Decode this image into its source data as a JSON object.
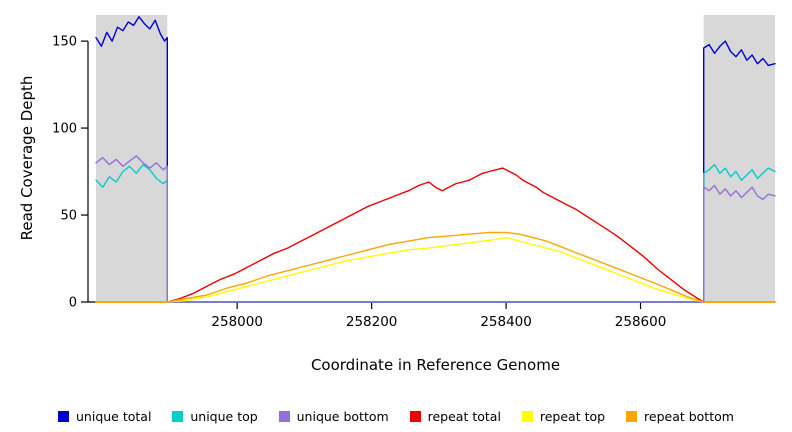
{
  "figure": {
    "background": "#FFFFFF",
    "axis_color": "#000000",
    "text_color": "#000000"
  },
  "chart_data": {
    "type": "line",
    "title": "",
    "xlabel": "Coordinate in Reference Genome",
    "ylabel": "Read Coverage Depth",
    "xlim": [
      257790,
      258800
    ],
    "ylim": [
      0,
      165
    ],
    "xticks": [
      258000,
      258200,
      258400,
      258600
    ],
    "yticks": [
      0,
      50,
      100,
      150
    ],
    "grid": false,
    "legend_position": "bottom",
    "shading_color": "#D8D8D8",
    "shaded_regions": [
      {
        "x0": 257790,
        "x1": 257896
      },
      {
        "x0": 258694,
        "x1": 258800
      }
    ],
    "series": [
      {
        "name": "unique total",
        "color": "#0000CD",
        "points": [
          [
            257790,
            152
          ],
          [
            257798,
            147
          ],
          [
            257806,
            155
          ],
          [
            257814,
            150
          ],
          [
            257822,
            158
          ],
          [
            257830,
            156
          ],
          [
            257838,
            161
          ],
          [
            257846,
            159
          ],
          [
            257854,
            164
          ],
          [
            257862,
            160
          ],
          [
            257870,
            157
          ],
          [
            257878,
            162
          ],
          [
            257886,
            154
          ],
          [
            257892,
            150
          ],
          [
            257896,
            152
          ],
          [
            257896,
            0
          ],
          [
            258694,
            0
          ],
          [
            258694,
            146
          ],
          [
            258702,
            148
          ],
          [
            258710,
            143
          ],
          [
            258718,
            147
          ],
          [
            258726,
            150
          ],
          [
            258734,
            144
          ],
          [
            258742,
            141
          ],
          [
            258750,
            145
          ],
          [
            258758,
            139
          ],
          [
            258766,
            142
          ],
          [
            258774,
            137
          ],
          [
            258782,
            140
          ],
          [
            258790,
            136
          ],
          [
            258800,
            137
          ]
        ]
      },
      {
        "name": "unique top",
        "color": "#00CDCD",
        "points": [
          [
            257790,
            70
          ],
          [
            257800,
            66
          ],
          [
            257810,
            72
          ],
          [
            257820,
            69
          ],
          [
            257830,
            75
          ],
          [
            257840,
            78
          ],
          [
            257850,
            74
          ],
          [
            257860,
            79
          ],
          [
            257870,
            76
          ],
          [
            257880,
            71
          ],
          [
            257890,
            68
          ],
          [
            257896,
            70
          ],
          [
            257896,
            0
          ],
          [
            258694,
            0
          ],
          [
            258694,
            74
          ],
          [
            258702,
            76
          ],
          [
            258710,
            79
          ],
          [
            258718,
            74
          ],
          [
            258726,
            77
          ],
          [
            258734,
            72
          ],
          [
            258742,
            75
          ],
          [
            258750,
            70
          ],
          [
            258758,
            73
          ],
          [
            258766,
            76
          ],
          [
            258774,
            71
          ],
          [
            258782,
            74
          ],
          [
            258790,
            77
          ],
          [
            258800,
            75
          ]
        ]
      },
      {
        "name": "unique bottom",
        "color": "#9370DB",
        "points": [
          [
            257790,
            80
          ],
          [
            257800,
            83
          ],
          [
            257810,
            79
          ],
          [
            257820,
            82
          ],
          [
            257830,
            78
          ],
          [
            257840,
            81
          ],
          [
            257850,
            84
          ],
          [
            257860,
            80
          ],
          [
            257870,
            77
          ],
          [
            257880,
            80
          ],
          [
            257890,
            76
          ],
          [
            257896,
            78
          ],
          [
            257896,
            0
          ],
          [
            258694,
            0
          ],
          [
            258694,
            66
          ],
          [
            258702,
            64
          ],
          [
            258710,
            67
          ],
          [
            258718,
            62
          ],
          [
            258726,
            65
          ],
          [
            258734,
            61
          ],
          [
            258742,
            64
          ],
          [
            258750,
            60
          ],
          [
            258758,
            63
          ],
          [
            258766,
            66
          ],
          [
            258774,
            61
          ],
          [
            258782,
            59
          ],
          [
            258790,
            62
          ],
          [
            258800,
            61
          ]
        ]
      },
      {
        "name": "repeat total",
        "color": "#EE0000",
        "points": [
          [
            257790,
            0
          ],
          [
            257896,
            0
          ],
          [
            257915,
            2
          ],
          [
            257935,
            5
          ],
          [
            257955,
            9
          ],
          [
            257975,
            13
          ],
          [
            257995,
            16
          ],
          [
            258015,
            20
          ],
          [
            258035,
            24
          ],
          [
            258055,
            28
          ],
          [
            258075,
            31
          ],
          [
            258095,
            35
          ],
          [
            258115,
            39
          ],
          [
            258135,
            43
          ],
          [
            258155,
            47
          ],
          [
            258175,
            51
          ],
          [
            258195,
            55
          ],
          [
            258215,
            58
          ],
          [
            258235,
            61
          ],
          [
            258255,
            64
          ],
          [
            258270,
            67
          ],
          [
            258285,
            69
          ],
          [
            258295,
            66
          ],
          [
            258305,
            64
          ],
          [
            258315,
            66
          ],
          [
            258325,
            68
          ],
          [
            258335,
            69
          ],
          [
            258345,
            70
          ],
          [
            258355,
            72
          ],
          [
            258365,
            74
          ],
          [
            258375,
            75
          ],
          [
            258385,
            76
          ],
          [
            258395,
            77
          ],
          [
            258405,
            75
          ],
          [
            258415,
            73
          ],
          [
            258425,
            70
          ],
          [
            258435,
            68
          ],
          [
            258445,
            66
          ],
          [
            258455,
            63
          ],
          [
            258465,
            61
          ],
          [
            258485,
            57
          ],
          [
            258505,
            53
          ],
          [
            258525,
            48
          ],
          [
            258545,
            43
          ],
          [
            258565,
            38
          ],
          [
            258585,
            32
          ],
          [
            258605,
            26
          ],
          [
            258625,
            19
          ],
          [
            258645,
            13
          ],
          [
            258665,
            7
          ],
          [
            258685,
            2
          ],
          [
            258694,
            0
          ],
          [
            258800,
            0
          ]
        ]
      },
      {
        "name": "repeat top",
        "color": "#FFFF00",
        "points": [
          [
            257790,
            0
          ],
          [
            257896,
            0
          ],
          [
            257925,
            1
          ],
          [
            257955,
            3
          ],
          [
            257985,
            6
          ],
          [
            258015,
            9
          ],
          [
            258045,
            12
          ],
          [
            258075,
            15
          ],
          [
            258105,
            18
          ],
          [
            258135,
            21
          ],
          [
            258165,
            24
          ],
          [
            258195,
            26
          ],
          [
            258225,
            28
          ],
          [
            258255,
            30
          ],
          [
            258285,
            31
          ],
          [
            258305,
            32
          ],
          [
            258325,
            33
          ],
          [
            258345,
            34
          ],
          [
            258365,
            35
          ],
          [
            258385,
            36
          ],
          [
            258400,
            37
          ],
          [
            258420,
            35
          ],
          [
            258440,
            33
          ],
          [
            258460,
            31
          ],
          [
            258480,
            29
          ],
          [
            258500,
            26
          ],
          [
            258520,
            23
          ],
          [
            258540,
            20
          ],
          [
            258560,
            17
          ],
          [
            258580,
            14
          ],
          [
            258600,
            11
          ],
          [
            258620,
            8
          ],
          [
            258645,
            5
          ],
          [
            258670,
            2
          ],
          [
            258694,
            0
          ],
          [
            258800,
            0
          ]
        ]
      },
      {
        "name": "repeat bottom",
        "color": "#FFA500",
        "points": [
          [
            257790,
            0
          ],
          [
            257896,
            0
          ],
          [
            257925,
            2
          ],
          [
            257955,
            4
          ],
          [
            257985,
            8
          ],
          [
            258015,
            11
          ],
          [
            258045,
            15
          ],
          [
            258075,
            18
          ],
          [
            258105,
            21
          ],
          [
            258135,
            24
          ],
          [
            258165,
            27
          ],
          [
            258195,
            30
          ],
          [
            258225,
            33
          ],
          [
            258255,
            35
          ],
          [
            258285,
            37
          ],
          [
            258315,
            38
          ],
          [
            258345,
            39
          ],
          [
            258375,
            40
          ],
          [
            258400,
            40
          ],
          [
            258420,
            39
          ],
          [
            258440,
            37
          ],
          [
            258460,
            35
          ],
          [
            258480,
            32
          ],
          [
            258500,
            29
          ],
          [
            258520,
            26
          ],
          [
            258540,
            23
          ],
          [
            258560,
            20
          ],
          [
            258580,
            17
          ],
          [
            258600,
            14
          ],
          [
            258620,
            11
          ],
          [
            258645,
            7
          ],
          [
            258670,
            3
          ],
          [
            258694,
            0
          ],
          [
            258800,
            0
          ]
        ]
      }
    ]
  }
}
